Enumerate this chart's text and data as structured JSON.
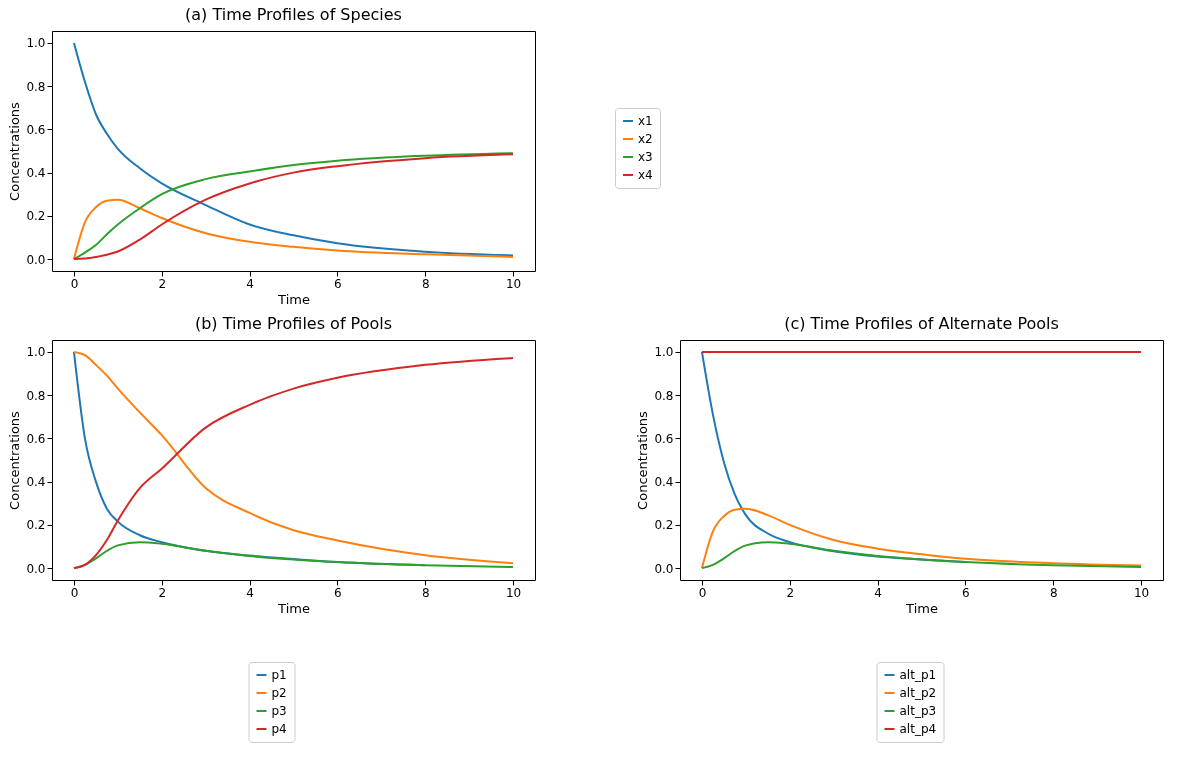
{
  "chart_data": [
    {
      "type": "line",
      "title": "(a) Time Profiles of Species",
      "xlabel": "Time",
      "ylabel": "Concentrations",
      "legend": "right",
      "grid": false,
      "xlim": [
        -0.5,
        10.5
      ],
      "ylim": [
        -0.055,
        1.055
      ],
      "xticks": [
        0,
        2,
        4,
        6,
        8,
        10
      ],
      "yticks": [
        {
          "value": 0,
          "label": "0.0"
        },
        {
          "value": 0.2,
          "label": "0.2"
        },
        {
          "value": 0.4,
          "label": "0.4"
        },
        {
          "value": 0.6,
          "label": "0.6"
        },
        {
          "value": 0.8,
          "label": "0.8"
        },
        {
          "value": 1,
          "label": "1.0"
        }
      ],
      "x": [
        0,
        0.25,
        0.5,
        0.75,
        1,
        1.5,
        2,
        3,
        4,
        5,
        6,
        8,
        10
      ],
      "series": [
        {
          "name": "x1",
          "color": "#1f77b4",
          "values": [
            1.0,
            0.82,
            0.67,
            0.58,
            0.51,
            0.42,
            0.35,
            0.25,
            0.16,
            0.11,
            0.073,
            0.034,
            0.017
          ]
        },
        {
          "name": "x2",
          "color": "#ff7f0e",
          "values": [
            0,
            0.17,
            0.24,
            0.27,
            0.275,
            0.235,
            0.19,
            0.12,
            0.08,
            0.057,
            0.04,
            0.022,
            0.01
          ]
        },
        {
          "name": "x3",
          "color": "#2ca02c",
          "values": [
            0,
            0.03,
            0.065,
            0.115,
            0.16,
            0.235,
            0.3,
            0.37,
            0.405,
            0.435,
            0.455,
            0.478,
            0.49
          ]
        },
        {
          "name": "x4",
          "color": "#d62728",
          "values": [
            0,
            0.003,
            0.01,
            0.02,
            0.035,
            0.09,
            0.16,
            0.275,
            0.35,
            0.4,
            0.43,
            0.467,
            0.485
          ]
        }
      ]
    },
    {
      "type": "line",
      "title": "(b) Time Profiles of Pools",
      "xlabel": "Time",
      "ylabel": "Concentrations",
      "legend": "bottom",
      "grid": false,
      "xlim": [
        -0.5,
        10.5
      ],
      "ylim": [
        -0.055,
        1.055
      ],
      "xticks": [
        0,
        2,
        4,
        6,
        8,
        10
      ],
      "yticks": [
        {
          "value": 0,
          "label": "0.0"
        },
        {
          "value": 0.2,
          "label": "0.2"
        },
        {
          "value": 0.4,
          "label": "0.4"
        },
        {
          "value": 0.6,
          "label": "0.6"
        },
        {
          "value": 0.8,
          "label": "0.8"
        },
        {
          "value": 1,
          "label": "1.0"
        }
      ],
      "x": [
        0,
        0.25,
        0.5,
        0.75,
        1,
        1.5,
        2,
        3,
        4,
        5,
        6,
        8,
        10
      ],
      "series": [
        {
          "name": "p1",
          "color": "#1f77b4",
          "values": [
            1.0,
            0.6,
            0.4,
            0.275,
            0.215,
            0.152,
            0.12,
            0.08,
            0.058,
            0.042,
            0.028,
            0.013,
            null
          ]
        },
        {
          "name": "p2",
          "color": "#ff7f0e",
          "values": [
            1.0,
            0.985,
            0.94,
            0.89,
            0.83,
            0.72,
            0.615,
            0.37,
            0.255,
            0.175,
            0.128,
            0.06,
            0.023
          ]
        },
        {
          "name": "p3",
          "color": "#2ca02c",
          "values": [
            0,
            0.015,
            0.045,
            0.08,
            0.105,
            0.12,
            0.113,
            0.08,
            0.056,
            0.04,
            0.028,
            0.013,
            0.005
          ]
        },
        {
          "name": "p4",
          "color": "#d62728",
          "values": [
            0,
            0.015,
            0.06,
            0.13,
            0.22,
            0.37,
            0.46,
            0.65,
            0.755,
            0.83,
            0.88,
            0.94,
            0.972
          ]
        }
      ]
    },
    {
      "type": "line",
      "title": "(c) Time Profiles of Alternate Pools",
      "xlabel": "Time",
      "ylabel": "Concentrations",
      "legend": "bottom",
      "grid": false,
      "xlim": [
        -0.5,
        10.5
      ],
      "ylim": [
        -0.055,
        1.055
      ],
      "xticks": [
        0,
        2,
        4,
        6,
        8,
        10
      ],
      "yticks": [
        {
          "value": 0,
          "label": "0.0"
        },
        {
          "value": 0.2,
          "label": "0.2"
        },
        {
          "value": 0.4,
          "label": "0.4"
        },
        {
          "value": 0.6,
          "label": "0.6"
        },
        {
          "value": 0.8,
          "label": "0.8"
        },
        {
          "value": 1,
          "label": "1.0"
        }
      ],
      "x": [
        0,
        0.25,
        0.5,
        0.75,
        1,
        1.5,
        2,
        3,
        4,
        5,
        6,
        8,
        10
      ],
      "series": [
        {
          "name": "alt_p1",
          "color": "#1f77b4",
          "values": [
            1.0,
            0.71,
            0.49,
            0.34,
            0.245,
            0.16,
            0.12,
            0.078,
            0.054,
            0.04,
            0.028,
            null,
            null
          ]
        },
        {
          "name": "alt_p2",
          "color": "#ff7f0e",
          "values": [
            0,
            0.17,
            0.24,
            0.27,
            0.275,
            0.245,
            0.2,
            0.13,
            0.09,
            0.064,
            0.043,
            0.023,
            0.012
          ]
        },
        {
          "name": "alt_p3",
          "color": "#2ca02c",
          "values": [
            0,
            0.015,
            0.045,
            0.08,
            0.105,
            0.12,
            0.113,
            0.08,
            0.056,
            0.04,
            0.028,
            0.013,
            0.005
          ]
        },
        {
          "name": "alt_p4",
          "color": "#d62728",
          "values": [
            1,
            1,
            1,
            1,
            1,
            1,
            1,
            1,
            1,
            1,
            1,
            1,
            1
          ]
        }
      ]
    }
  ]
}
